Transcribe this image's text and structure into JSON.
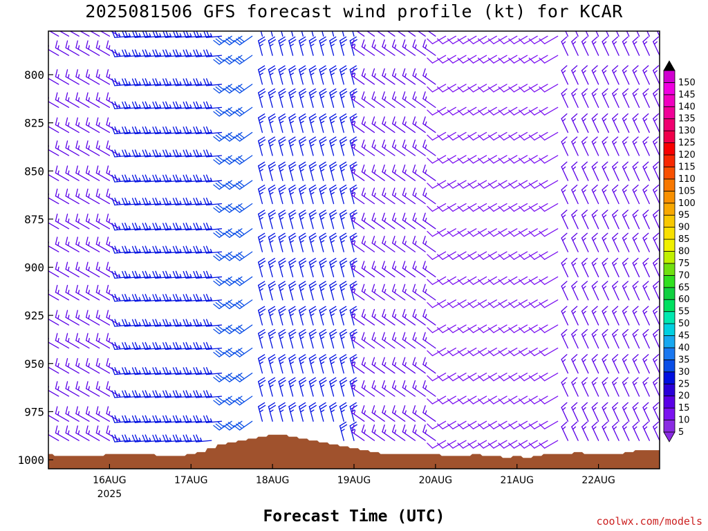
{
  "title": "2025081506 GFS forecast wind profile (kt) for KCAR",
  "xlabel": "Forecast Time (UTC)",
  "credit": "coolwx.com/models",
  "chart_data": {
    "type": "wind-barb-profile",
    "y_axis": {
      "label": "",
      "ticks": [
        800,
        825,
        850,
        875,
        900,
        925,
        950,
        975,
        1000
      ],
      "range_hPa": [
        1000,
        780
      ],
      "inverted": true
    },
    "x_axis": {
      "ticks": [
        "16AUG",
        "17AUG",
        "18AUG",
        "19AUG",
        "20AUG",
        "21AUG",
        "22AUG"
      ],
      "year_label": "2025",
      "start": "2025-08-15 06Z",
      "end": "2025-08-22 18Z",
      "step_hours": 3
    },
    "terrain_color": "#a0522d",
    "terrain_surface_hPa": [
      997,
      998,
      998,
      998,
      998,
      998,
      997,
      997,
      997,
      997,
      997,
      998,
      998,
      998,
      997,
      996,
      994,
      992,
      991,
      990,
      989,
      988,
      987,
      987,
      988,
      989,
      990,
      991,
      992,
      993,
      994,
      995,
      996,
      997,
      997,
      997,
      997,
      997,
      997,
      998,
      998,
      998,
      997,
      998,
      998,
      999,
      998,
      999,
      998,
      997,
      997,
      997,
      996,
      997,
      997,
      997,
      997,
      996,
      995,
      995,
      995,
      995,
      995,
      995,
      995,
      995,
      995,
      995,
      995,
      993,
      992,
      991,
      991,
      991,
      991,
      991,
      992
    ],
    "colorbar": {
      "title": "",
      "values": [
        5,
        10,
        15,
        20,
        25,
        30,
        35,
        40,
        45,
        50,
        55,
        60,
        65,
        70,
        75,
        80,
        85,
        90,
        95,
        100,
        105,
        110,
        115,
        120,
        125,
        130,
        135,
        140,
        145,
        150
      ],
      "colors": [
        "#8a2be2",
        "#7b12f0",
        "#5a00e6",
        "#2a00d8",
        "#0010e0",
        "#0a4ee6",
        "#1a78f0",
        "#18a8f0",
        "#00d0e0",
        "#00e8b0",
        "#00e060",
        "#10d040",
        "#30e020",
        "#70e010",
        "#c0f000",
        "#f0f000",
        "#f8e000",
        "#f8c800",
        "#f8a800",
        "#f89000",
        "#f87800",
        "#f85000",
        "#f82800",
        "#f80000",
        "#f0004a",
        "#f00070",
        "#f00098",
        "#f000c0",
        "#f000e0",
        "#d000d0"
      ],
      "extend_low_color": "#8a2be2",
      "extend_high_color": "#000000"
    },
    "wind_barbs": {
      "levels_hPa": [
        780,
        790,
        805,
        817,
        830,
        842,
        855,
        867,
        880,
        892,
        905,
        917,
        930,
        942,
        955,
        967,
        980,
        990
      ],
      "phases": [
        {
          "from": "2025-08-15 06Z",
          "to": "2025-08-16 03Z",
          "direction_deg": 300,
          "speed_kt": 15
        },
        {
          "from": "2025-08-16 06Z",
          "to": "2025-08-17 09Z",
          "direction_deg": 265,
          "speed_kt": 25
        },
        {
          "from": "2025-08-17 12Z",
          "to": "2025-08-17 18Z",
          "direction_deg": 235,
          "speed_kt": 30
        },
        {
          "from": "2025-08-17 21Z",
          "to": "2025-08-19 00Z",
          "direction_deg": 345,
          "speed_kt": 25
        },
        {
          "from": "2025-08-19 03Z",
          "to": "2025-08-20 00Z",
          "direction_deg": 305,
          "speed_kt": 15
        },
        {
          "from": "2025-08-20 03Z",
          "to": "2025-08-21 12Z",
          "direction_deg": 240,
          "speed_kt": 10
        },
        {
          "from": "2025-08-21 15Z",
          "to": "2025-08-22 18Z",
          "direction_deg": 335,
          "speed_kt": 15
        }
      ]
    }
  }
}
